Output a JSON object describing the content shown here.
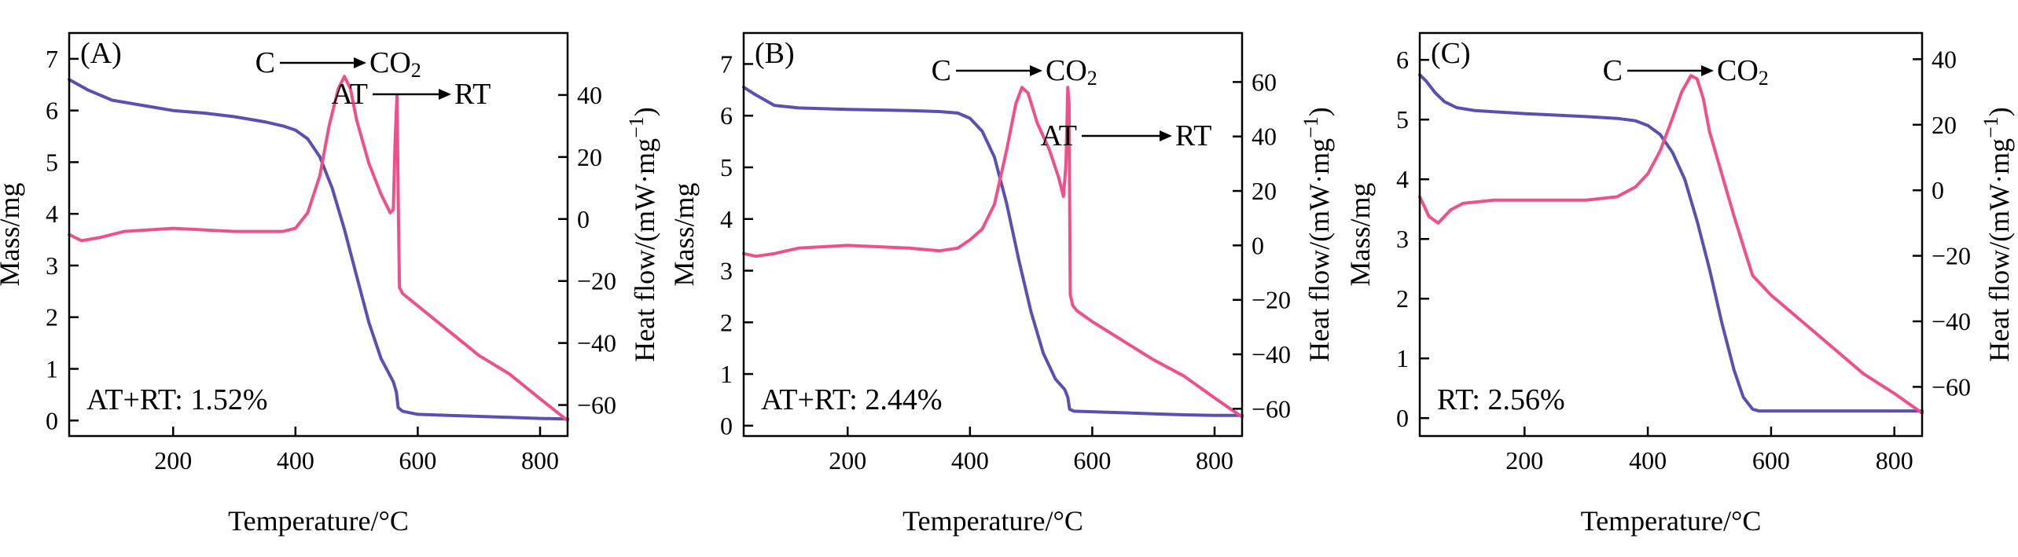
{
  "colors": {
    "mass": "#5a4fb3",
    "heat": "#f0508a",
    "axis": "#000000"
  },
  "chart_data": [
    {
      "type": "line",
      "panel_label": "(A)",
      "xlabel": "Temperature/°C",
      "ylabel": "Mass/mg",
      "y2label": "Heat flow/(mW·mg",
      "y2label_sup": "−1",
      "y2label_end": ")",
      "xlim": [
        30,
        845
      ],
      "ylim": [
        -0.3,
        7.5
      ],
      "y2lim": [
        -70,
        60
      ],
      "xticks": [
        200,
        400,
        600,
        800
      ],
      "yticks": [
        0,
        1,
        2,
        3,
        4,
        5,
        6,
        7
      ],
      "y2ticks": [
        -60,
        -40,
        -20,
        0,
        20,
        40
      ],
      "annotations": [
        {
          "from": "C",
          "to": "CO",
          "to_sub": "2"
        },
        {
          "from": "AT",
          "to": "RT"
        }
      ],
      "note": "AT+RT: 1.52%",
      "series": [
        {
          "name": "mass",
          "axis": "left",
          "x": [
            30,
            60,
            100,
            150,
            200,
            250,
            300,
            350,
            380,
            400,
            420,
            440,
            460,
            480,
            500,
            520,
            540,
            560,
            565,
            568,
            575,
            600,
            650,
            700,
            750,
            800,
            845
          ],
          "y": [
            6.6,
            6.4,
            6.2,
            6.1,
            6.0,
            5.95,
            5.88,
            5.78,
            5.7,
            5.62,
            5.45,
            5.1,
            4.5,
            3.7,
            2.8,
            1.9,
            1.2,
            0.75,
            0.55,
            0.25,
            0.18,
            0.12,
            0.1,
            0.08,
            0.06,
            0.04,
            0.03
          ]
        },
        {
          "name": "heat",
          "axis": "right",
          "x": [
            30,
            50,
            80,
            120,
            200,
            300,
            380,
            400,
            420,
            440,
            455,
            470,
            480,
            490,
            500,
            520,
            540,
            555,
            560,
            563,
            566,
            568,
            570,
            575,
            600,
            650,
            700,
            750,
            800,
            845
          ],
          "y": [
            -5,
            -7,
            -6,
            -4,
            -3,
            -4,
            -4,
            -3,
            2,
            14,
            30,
            42,
            46,
            42,
            32,
            18,
            8,
            2,
            3,
            25,
            40,
            8,
            -22,
            -24,
            -28,
            -36,
            -44,
            -50,
            -58,
            -65
          ]
        }
      ]
    },
    {
      "type": "line",
      "panel_label": "(B)",
      "xlabel": "Temperature/°C",
      "ylabel": "Mass/mg",
      "y2label": "Heat flow/(mW·mg",
      "y2label_sup": "−1",
      "y2label_end": ")",
      "xlim": [
        30,
        845
      ],
      "ylim": [
        -0.2,
        7.6
      ],
      "y2lim": [
        -70,
        78
      ],
      "xticks": [
        200,
        400,
        600,
        800
      ],
      "yticks": [
        0,
        1,
        2,
        3,
        4,
        5,
        6,
        7
      ],
      "y2ticks": [
        -60,
        -40,
        -20,
        0,
        20,
        40,
        60
      ],
      "annotations": [
        {
          "from": "C",
          "to": "CO",
          "to_sub": "2"
        },
        {
          "from": "AT",
          "to": "RT"
        }
      ],
      "note": "AT+RT: 2.44%",
      "series": [
        {
          "name": "mass",
          "axis": "left",
          "x": [
            30,
            50,
            80,
            120,
            200,
            300,
            350,
            380,
            400,
            420,
            440,
            460,
            480,
            500,
            520,
            540,
            555,
            560,
            563,
            570,
            600,
            650,
            700,
            750,
            800,
            845
          ],
          "y": [
            6.55,
            6.4,
            6.2,
            6.15,
            6.12,
            6.1,
            6.08,
            6.05,
            5.95,
            5.7,
            5.2,
            4.3,
            3.2,
            2.2,
            1.4,
            0.9,
            0.7,
            0.55,
            0.32,
            0.28,
            0.27,
            0.25,
            0.23,
            0.21,
            0.2,
            0.2
          ]
        },
        {
          "name": "heat",
          "axis": "right",
          "x": [
            30,
            50,
            80,
            120,
            200,
            300,
            350,
            380,
            400,
            420,
            440,
            460,
            475,
            485,
            495,
            510,
            530,
            545,
            553,
            557,
            560,
            562,
            564,
            568,
            575,
            600,
            650,
            700,
            750,
            800,
            845
          ],
          "y": [
            -3,
            -4,
            -3,
            -1,
            0,
            -1,
            -2,
            -1,
            2,
            6,
            15,
            35,
            52,
            58,
            56,
            45,
            35,
            25,
            18,
            30,
            58,
            52,
            -18,
            -22,
            -24,
            -28,
            -35,
            -42,
            -48,
            -56,
            -63
          ]
        }
      ]
    },
    {
      "type": "line",
      "panel_label": "(C)",
      "xlabel": "Temperature/°C",
      "ylabel": "Mass/mg",
      "y2label": "Heat flow/(mW·mg",
      "y2label_sup": "−1",
      "y2label_end": ")",
      "xlim": [
        30,
        845
      ],
      "ylim": [
        -0.3,
        6.45
      ],
      "y2lim": [
        -75,
        48
      ],
      "xticks": [
        200,
        400,
        600,
        800
      ],
      "yticks": [
        0,
        1,
        2,
        3,
        4,
        5,
        6
      ],
      "y2ticks": [
        -60,
        -40,
        -20,
        0,
        20,
        40
      ],
      "annotations": [
        {
          "from": "C",
          "to": "CO",
          "to_sub": "2"
        }
      ],
      "note": "RT: 2.56%",
      "series": [
        {
          "name": "mass",
          "axis": "left",
          "x": [
            30,
            40,
            55,
            70,
            90,
            120,
            200,
            300,
            350,
            380,
            400,
            420,
            440,
            460,
            480,
            500,
            520,
            540,
            555,
            570,
            580,
            600,
            650,
            700,
            750,
            800,
            845
          ],
          "y": [
            5.75,
            5.65,
            5.45,
            5.3,
            5.2,
            5.15,
            5.1,
            5.05,
            5.02,
            4.98,
            4.9,
            4.75,
            4.45,
            4.0,
            3.3,
            2.5,
            1.6,
            0.8,
            0.35,
            0.15,
            0.12,
            0.12,
            0.12,
            0.12,
            0.12,
            0.12,
            0.12
          ]
        },
        {
          "name": "heat",
          "axis": "right",
          "x": [
            30,
            45,
            60,
            80,
            100,
            150,
            200,
            300,
            350,
            380,
            400,
            420,
            440,
            455,
            470,
            480,
            490,
            500,
            520,
            540,
            560,
            570,
            580,
            600,
            650,
            700,
            750,
            800,
            845
          ],
          "y": [
            -2,
            -8,
            -10,
            -6,
            -4,
            -3,
            -3,
            -3,
            -2,
            1,
            5,
            12,
            22,
            30,
            35,
            34,
            28,
            18,
            5,
            -8,
            -20,
            -26,
            -28,
            -32,
            -40,
            -48,
            -56,
            -62,
            -68
          ]
        }
      ]
    }
  ]
}
